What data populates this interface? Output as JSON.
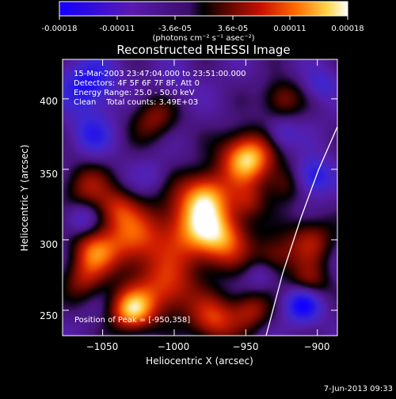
{
  "colorbar": {
    "tick_labels": [
      "-0.00018",
      "-0.00011",
      "-3.6e-05",
      "3.6e-05",
      "0.00011",
      "0.00018"
    ],
    "unit_label": "(photons cm⁻² s⁻¹ asec⁻²)",
    "range": [
      -0.00018,
      0.00018
    ]
  },
  "chart_data": {
    "type": "heatmap",
    "title": "Reconstructed RHESSI Image",
    "xlabel": "Heliocentric X (arcsec)",
    "ylabel": "Heliocentric Y (arcsec)",
    "xlim": [
      -1078,
      -886
    ],
    "ylim": [
      232,
      428
    ],
    "xticks": [
      -1050,
      -1000,
      -950,
      -900
    ],
    "yticks": [
      250,
      300,
      350,
      400
    ],
    "xtick_labels": [
      "−1050",
      "−1000",
      "−950",
      "−900"
    ],
    "ytick_labels": [
      "250",
      "300",
      "350",
      "400"
    ],
    "annotations": [
      "15-Mar-2003 23:47:04.000 to 23:51:00.000",
      "Detectors: 4F 5F 6F 7F 8F, Att 0",
      "Energy Range: 25.0 - 50.0 keV",
      "Clean    Total counts: 3.49E+03"
    ],
    "peak_label": "Position of Peak = [-950,358]",
    "peak_position": [
      -950,
      358
    ],
    "blobs": [
      {
        "x": -949,
        "y": 358,
        "v": 1.0,
        "r": 13
      },
      {
        "x": -978,
        "y": 333,
        "v": 0.62,
        "r": 12
      },
      {
        "x": -985,
        "y": 310,
        "v": 0.78,
        "r": 18
      },
      {
        "x": -965,
        "y": 300,
        "v": 0.55,
        "r": 14
      },
      {
        "x": -1030,
        "y": 300,
        "v": 0.65,
        "r": 16
      },
      {
        "x": -1057,
        "y": 292,
        "v": 0.55,
        "r": 11
      },
      {
        "x": -1005,
        "y": 265,
        "v": 0.62,
        "r": 15
      },
      {
        "x": -1030,
        "y": 250,
        "v": 0.85,
        "r": 11
      },
      {
        "x": -972,
        "y": 243,
        "v": 0.62,
        "r": 12
      },
      {
        "x": -947,
        "y": 250,
        "v": 0.48,
        "r": 10
      },
      {
        "x": -1062,
        "y": 338,
        "v": 0.45,
        "r": 12
      },
      {
        "x": -1063,
        "y": 272,
        "v": 0.42,
        "r": 11
      },
      {
        "x": -905,
        "y": 300,
        "v": 0.5,
        "r": 12
      },
      {
        "x": -930,
        "y": 288,
        "v": 0.4,
        "r": 10
      },
      {
        "x": -906,
        "y": 268,
        "v": 0.5,
        "r": 10
      },
      {
        "x": -1014,
        "y": 386,
        "v": 0.42,
        "r": 12
      },
      {
        "x": -925,
        "y": 400,
        "v": 0.45,
        "r": 10
      },
      {
        "x": -923,
        "y": 340,
        "v": 0.35,
        "r": 10
      },
      {
        "x": -1040,
        "y": 323,
        "v": 0.4,
        "r": 10
      },
      {
        "x": -948,
        "y": 327,
        "v": 0.35,
        "r": 9
      },
      {
        "x": -1060,
        "y": 410,
        "v": -0.55,
        "r": 13
      },
      {
        "x": -1058,
        "y": 375,
        "v": -0.4,
        "r": 10
      },
      {
        "x": -1065,
        "y": 315,
        "v": -0.35,
        "r": 8
      },
      {
        "x": -910,
        "y": 255,
        "v": -0.75,
        "r": 9
      },
      {
        "x": -903,
        "y": 345,
        "v": -0.55,
        "r": 9
      },
      {
        "x": -925,
        "y": 375,
        "v": -0.3,
        "r": 8
      },
      {
        "x": -898,
        "y": 410,
        "v": -0.3,
        "r": 8
      },
      {
        "x": -1015,
        "y": 345,
        "v": -0.15,
        "r": 8
      },
      {
        "x": -940,
        "y": 275,
        "v": -0.2,
        "r": 7
      },
      {
        "x": -1000,
        "y": 410,
        "v": -0.18,
        "r": 9
      }
    ]
  },
  "footer": {
    "date": "7-Jun-2013 09:33"
  }
}
